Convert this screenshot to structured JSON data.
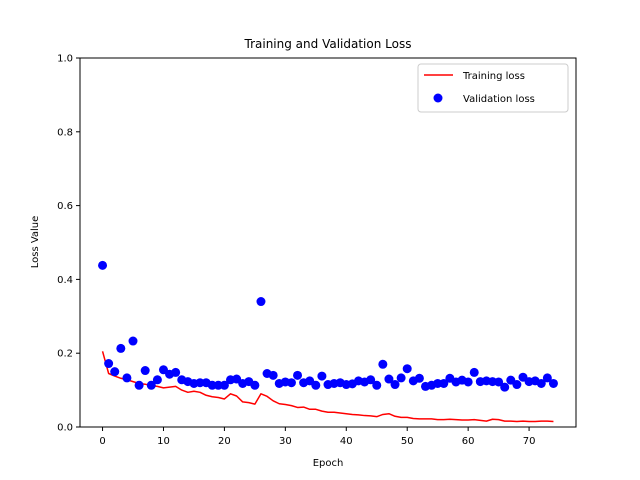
{
  "chart_data": {
    "type": "line",
    "title": "Training and Validation Loss",
    "xlabel": "Epoch",
    "ylabel": "Loss Value",
    "xlim": [
      -3.7,
      77.7
    ],
    "ylim": [
      0,
      1.0
    ],
    "xticks": [
      0,
      10,
      20,
      30,
      40,
      50,
      60,
      70
    ],
    "yticks": [
      0.0,
      0.2,
      0.4,
      0.6,
      0.8,
      1.0
    ],
    "xtick_labels": [
      "0",
      "10",
      "20",
      "30",
      "40",
      "50",
      "60",
      "70"
    ],
    "ytick_labels": [
      "0.0",
      "0.2",
      "0.4",
      "0.6",
      "0.8",
      "1.0"
    ],
    "legend_position": "top-right",
    "series": [
      {
        "name": "Training loss",
        "style": "line",
        "color": "#ff0000",
        "x": [
          0,
          1,
          2,
          3,
          4,
          5,
          6,
          7,
          8,
          9,
          10,
          11,
          12,
          13,
          14,
          15,
          16,
          17,
          18,
          19,
          20,
          21,
          22,
          23,
          24,
          25,
          26,
          27,
          28,
          29,
          30,
          31,
          32,
          33,
          34,
          35,
          36,
          37,
          38,
          39,
          40,
          41,
          42,
          43,
          44,
          45,
          46,
          47,
          48,
          49,
          50,
          51,
          52,
          53,
          54,
          55,
          56,
          57,
          58,
          59,
          60,
          61,
          62,
          63,
          64,
          65,
          66,
          67,
          68,
          69,
          70,
          71,
          72,
          73,
          74
        ],
        "values": [
          0.205,
          0.145,
          0.138,
          0.132,
          0.128,
          0.123,
          0.118,
          0.116,
          0.112,
          0.11,
          0.106,
          0.108,
          0.11,
          0.1,
          0.094,
          0.097,
          0.094,
          0.086,
          0.082,
          0.08,
          0.076,
          0.09,
          0.084,
          0.068,
          0.066,
          0.062,
          0.09,
          0.083,
          0.071,
          0.063,
          0.061,
          0.058,
          0.053,
          0.054,
          0.048,
          0.048,
          0.043,
          0.04,
          0.04,
          0.038,
          0.036,
          0.034,
          0.033,
          0.031,
          0.03,
          0.028,
          0.034,
          0.036,
          0.029,
          0.026,
          0.026,
          0.023,
          0.022,
          0.022,
          0.022,
          0.02,
          0.02,
          0.021,
          0.02,
          0.019,
          0.019,
          0.02,
          0.018,
          0.016,
          0.021,
          0.02,
          0.016,
          0.016,
          0.015,
          0.016,
          0.015,
          0.015,
          0.016,
          0.016,
          0.015
        ]
      },
      {
        "name": "Validation loss",
        "style": "scatter",
        "color": "#0000ff",
        "x": [
          0,
          1,
          2,
          3,
          4,
          5,
          6,
          7,
          8,
          9,
          10,
          11,
          12,
          13,
          14,
          15,
          16,
          17,
          18,
          19,
          20,
          21,
          22,
          23,
          24,
          25,
          26,
          27,
          28,
          29,
          30,
          31,
          32,
          33,
          34,
          35,
          36,
          37,
          38,
          39,
          40,
          41,
          42,
          43,
          44,
          45,
          46,
          47,
          48,
          49,
          50,
          51,
          52,
          53,
          54,
          55,
          56,
          57,
          58,
          59,
          60,
          61,
          62,
          63,
          64,
          65,
          66,
          67,
          68,
          69,
          70,
          71,
          72,
          73,
          74
        ],
        "values": [
          0.438,
          0.172,
          0.15,
          0.213,
          0.133,
          0.233,
          0.113,
          0.153,
          0.113,
          0.128,
          0.155,
          0.143,
          0.148,
          0.128,
          0.123,
          0.118,
          0.12,
          0.12,
          0.113,
          0.113,
          0.113,
          0.128,
          0.13,
          0.118,
          0.123,
          0.113,
          0.34,
          0.145,
          0.14,
          0.118,
          0.122,
          0.12,
          0.14,
          0.12,
          0.125,
          0.113,
          0.138,
          0.115,
          0.118,
          0.12,
          0.115,
          0.117,
          0.125,
          0.122,
          0.128,
          0.113,
          0.17,
          0.13,
          0.115,
          0.133,
          0.158,
          0.125,
          0.132,
          0.11,
          0.113,
          0.118,
          0.118,
          0.132,
          0.122,
          0.127,
          0.122,
          0.148,
          0.123,
          0.125,
          0.123,
          0.122,
          0.108,
          0.127,
          0.115,
          0.135,
          0.123,
          0.125,
          0.118,
          0.133,
          0.118
        ]
      }
    ]
  }
}
